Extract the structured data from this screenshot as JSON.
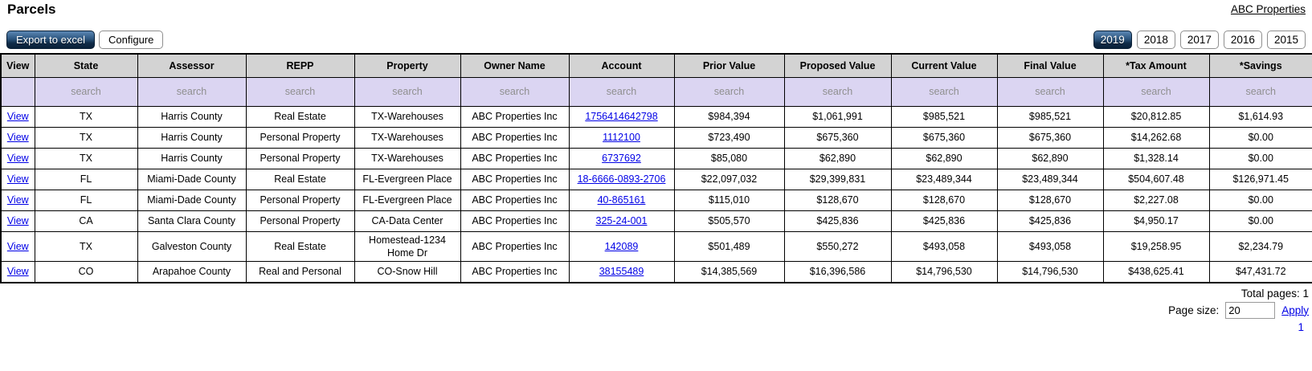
{
  "page": {
    "title": "Parcels",
    "account_link": "ABC Properties"
  },
  "toolbar": {
    "export_label": "Export to excel",
    "configure_label": "Configure",
    "years": [
      {
        "label": "2019",
        "selected": true
      },
      {
        "label": "2018",
        "selected": false
      },
      {
        "label": "2017",
        "selected": false
      },
      {
        "label": "2016",
        "selected": false
      },
      {
        "label": "2015",
        "selected": false
      }
    ]
  },
  "table": {
    "view_label": "View",
    "search_placeholder": "search",
    "columns": [
      "View",
      "State",
      "Assessor",
      "REPP",
      "Property",
      "Owner Name",
      "Account",
      "Prior Value",
      "Proposed Value",
      "Current Value",
      "Final Value",
      "*Tax Amount",
      "*Savings"
    ],
    "rows": [
      {
        "state": "TX",
        "assessor": "Harris County",
        "repp": "Real Estate",
        "property": "TX-Warehouses",
        "owner": "ABC Properties Inc",
        "account": "1756414642798",
        "prior": "$984,394",
        "proposed": "$1,061,991",
        "current": "$985,521",
        "final": "$985,521",
        "tax": "$20,812.85",
        "savings": "$1,614.93"
      },
      {
        "state": "TX",
        "assessor": "Harris County",
        "repp": "Personal Property",
        "property": "TX-Warehouses",
        "owner": "ABC Properties Inc",
        "account": "1112100",
        "prior": "$723,490",
        "proposed": "$675,360",
        "current": "$675,360",
        "final": "$675,360",
        "tax": "$14,262.68",
        "savings": "$0.00"
      },
      {
        "state": "TX",
        "assessor": "Harris County",
        "repp": "Personal Property",
        "property": "TX-Warehouses",
        "owner": "ABC Properties Inc",
        "account": "6737692",
        "prior": "$85,080",
        "proposed": "$62,890",
        "current": "$62,890",
        "final": "$62,890",
        "tax": "$1,328.14",
        "savings": "$0.00"
      },
      {
        "state": "FL",
        "assessor": "Miami-Dade County",
        "repp": "Real Estate",
        "property": "FL-Evergreen Place",
        "owner": "ABC Properties Inc",
        "account": "18-6666-0893-2706",
        "prior": "$22,097,032",
        "proposed": "$29,399,831",
        "current": "$23,489,344",
        "final": "$23,489,344",
        "tax": "$504,607.48",
        "savings": "$126,971.45"
      },
      {
        "state": "FL",
        "assessor": "Miami-Dade County",
        "repp": "Personal Property",
        "property": "FL-Evergreen Place",
        "owner": "ABC Properties Inc",
        "account": "40-865161",
        "prior": "$115,010",
        "proposed": "$128,670",
        "current": "$128,670",
        "final": "$128,670",
        "tax": "$2,227.08",
        "savings": "$0.00"
      },
      {
        "state": "CA",
        "assessor": "Santa Clara County",
        "repp": "Personal Property",
        "property": "CA-Data Center",
        "owner": "ABC Properties Inc",
        "account": "325-24-001",
        "prior": "$505,570",
        "proposed": "$425,836",
        "current": "$425,836",
        "final": "$425,836",
        "tax": "$4,950.17",
        "savings": "$0.00"
      },
      {
        "state": "TX",
        "assessor": "Galveston County",
        "repp": "Real Estate",
        "property": "Homestead-1234 Home Dr",
        "owner": "ABC Properties Inc",
        "account": "142089",
        "prior": "$501,489",
        "proposed": "$550,272",
        "current": "$493,058",
        "final": "$493,058",
        "tax": "$19,258.95",
        "savings": "$2,234.79"
      },
      {
        "state": "CO",
        "assessor": "Arapahoe County",
        "repp": "Real and Personal",
        "property": "CO-Snow Hill",
        "owner": "ABC Properties Inc",
        "account": "38155489",
        "prior": "$14,385,569",
        "proposed": "$16,396,586",
        "current": "$14,796,530",
        "final": "$14,796,530",
        "tax": "$438,625.41",
        "savings": "$47,431.72"
      }
    ]
  },
  "pagination": {
    "total_pages_label": "Total pages:",
    "total_pages_value": "1",
    "page_size_label": "Page size:",
    "page_size_value": "20",
    "apply_label": "Apply",
    "current_page": "1"
  },
  "colors": {
    "header_bg": "#d3d3d3",
    "search_bg": "#dbd5f2",
    "link": "#0000e6",
    "selected_button_top": "#5b87b4",
    "selected_button_bottom": "#0a2038"
  }
}
